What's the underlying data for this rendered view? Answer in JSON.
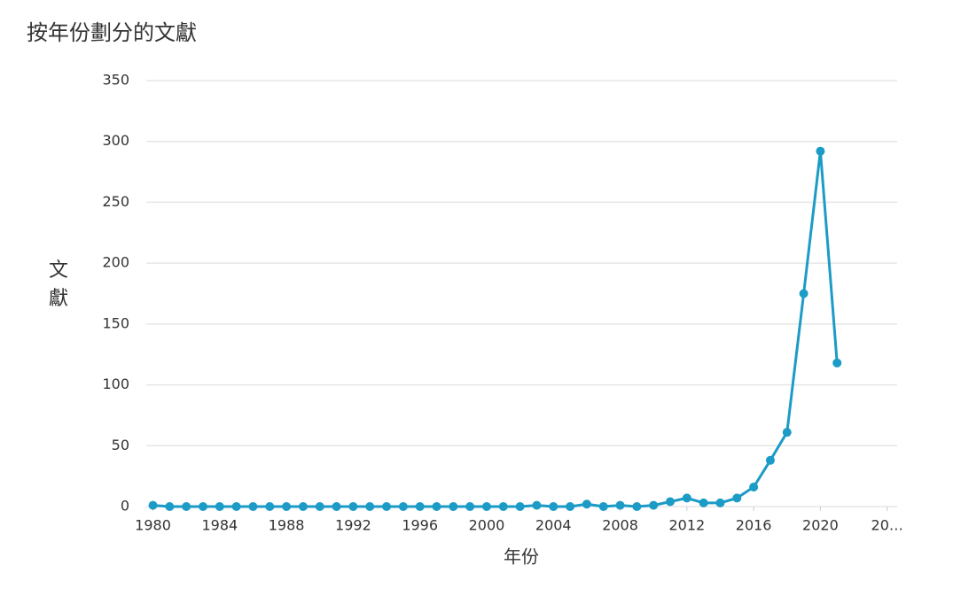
{
  "chart_data": {
    "type": "line",
    "title": "按年份劃分的文獻",
    "x_label": "年份",
    "y_label": "文獻",
    "x": [
      1980,
      1981,
      1982,
      1983,
      1984,
      1985,
      1986,
      1987,
      1988,
      1989,
      1990,
      1991,
      1992,
      1993,
      1994,
      1995,
      1996,
      1997,
      1998,
      1999,
      2000,
      2001,
      2002,
      2003,
      2004,
      2005,
      2006,
      2007,
      2008,
      2009,
      2010,
      2011,
      2012,
      2013,
      2014,
      2015,
      2016,
      2017,
      2018,
      2019,
      2020,
      2021
    ],
    "series": [
      {
        "name": "文獻",
        "color": "#1b9bc6",
        "values": [
          1,
          0,
          0,
          0,
          0,
          0,
          0,
          0,
          0,
          0,
          0,
          0,
          0,
          0,
          0,
          0,
          0,
          0,
          0,
          0,
          0,
          0,
          0,
          1,
          0,
          0,
          2,
          0,
          1,
          0,
          1,
          4,
          7,
          3,
          3,
          7,
          16,
          38,
          61,
          175,
          292,
          118
        ]
      }
    ],
    "xlim": [
      1979.6,
      2024.6
    ],
    "xticks": [
      1980,
      1984,
      1988,
      1992,
      1996,
      2000,
      2004,
      2008,
      2012,
      2016,
      2020,
      {
        "value": 2024,
        "label": "20…"
      }
    ],
    "ylim": [
      0,
      350
    ],
    "yticks": [
      0,
      50,
      100,
      150,
      200,
      250,
      300,
      350
    ],
    "grid": true
  }
}
